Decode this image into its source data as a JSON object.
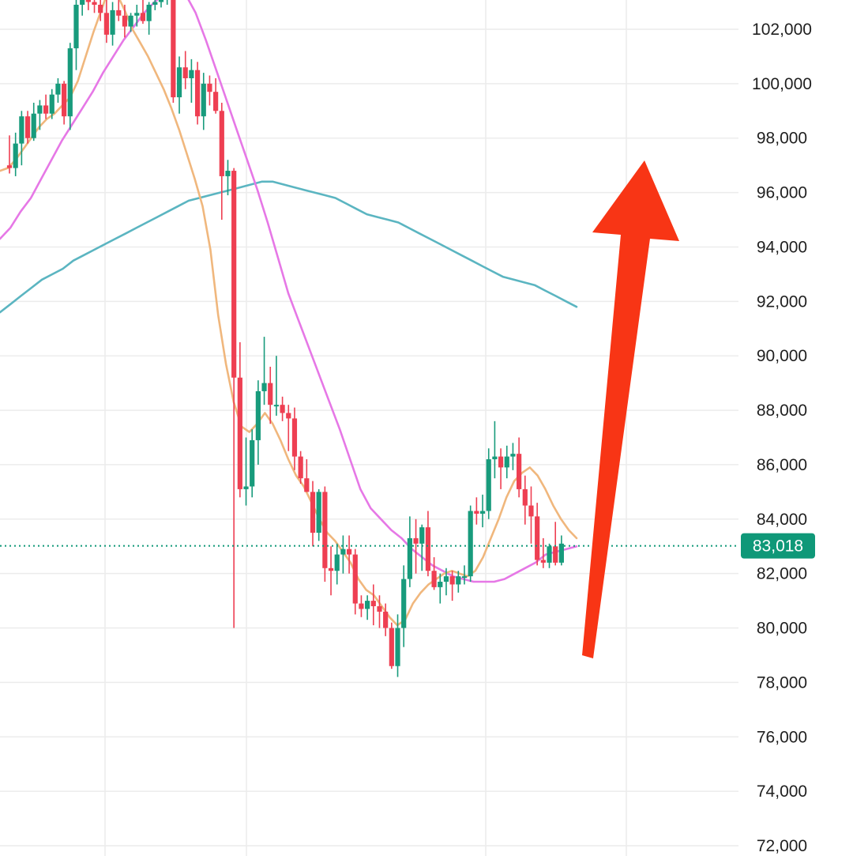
{
  "chart_data": {
    "type": "candlestick",
    "ylim": [
      72000,
      103000
    ],
    "y_ticks": [
      72000,
      74000,
      76000,
      78000,
      80000,
      82000,
      84000,
      86000,
      88000,
      90000,
      92000,
      94000,
      96000,
      98000,
      100000,
      102000
    ],
    "y_tick_labels": [
      "72,000",
      "74,000",
      "76,000",
      "78,000",
      "80,000",
      "82,000",
      "84,000",
      "86,000",
      "88,000",
      "90,000",
      "92,000",
      "94,000",
      "96,000",
      "98,000",
      "100,000",
      "102,000"
    ],
    "grid": true,
    "current_price": 83018,
    "current_price_label": "83,018",
    "colors": {
      "up": "#189b7c",
      "down": "#ee3f52",
      "ma_fast": "#f0b77d",
      "ma_mid": "#e678e6",
      "ma_slow": "#5bb5c1",
      "arrow": "#f83515",
      "price_tag": "#0f9878",
      "grid": "#ececec",
      "axis_text": "#1f1f1f"
    },
    "candles": [
      [
        97000,
        98100,
        96700,
        96900
      ],
      [
        96900,
        98200,
        96600,
        97800
      ],
      [
        97800,
        99000,
        97000,
        98800
      ],
      [
        98800,
        99000,
        97800,
        98000
      ],
      [
        98000,
        99300,
        97900,
        98900
      ],
      [
        98900,
        99400,
        98300,
        99200
      ],
      [
        99200,
        99600,
        98700,
        98900
      ],
      [
        98900,
        99800,
        98700,
        99600
      ],
      [
        99600,
        100200,
        99300,
        100000
      ],
      [
        100000,
        100100,
        98500,
        98800
      ],
      [
        98800,
        101500,
        98300,
        101300
      ],
      [
        101300,
        103200,
        100500,
        102900
      ],
      [
        102900,
        103400,
        102500,
        103100
      ],
      [
        103100,
        103300,
        102700,
        103000
      ],
      [
        103000,
        103400,
        102600,
        102900
      ],
      [
        102900,
        103300,
        102300,
        102600
      ],
      [
        102600,
        103100,
        101500,
        101800
      ],
      [
        101800,
        103000,
        101400,
        102700
      ],
      [
        102700,
        103100,
        102300,
        102500
      ],
      [
        102500,
        102900,
        101700,
        102100
      ],
      [
        102100,
        102600,
        101900,
        102500
      ],
      [
        102500,
        102900,
        102100,
        102600
      ],
      [
        102600,
        103100,
        102200,
        102300
      ],
      [
        102300,
        103000,
        101800,
        102900
      ],
      [
        102900,
        103300,
        102700,
        103000
      ],
      [
        103000,
        103400,
        102800,
        103100
      ],
      [
        103100,
        103300,
        102900,
        103200
      ],
      [
        103200,
        103300,
        99300,
        99500
      ],
      [
        99500,
        101000,
        98900,
        100600
      ],
      [
        100600,
        101200,
        99800,
        100200
      ],
      [
        100200,
        100900,
        99300,
        100500
      ],
      [
        100500,
        100800,
        98500,
        98800
      ],
      [
        98800,
        100400,
        98300,
        100000
      ],
      [
        100000,
        100300,
        99200,
        99700
      ],
      [
        99700,
        100200,
        98900,
        99000
      ],
      [
        99000,
        99300,
        95000,
        96600
      ],
      [
        96600,
        97200,
        95900,
        96800
      ],
      [
        96800,
        96900,
        80000,
        89200
      ],
      [
        89200,
        90500,
        84800,
        85100
      ],
      [
        85100,
        87000,
        84500,
        85200
      ],
      [
        85200,
        87300,
        84800,
        86900
      ],
      [
        86900,
        89100,
        86000,
        88700
      ],
      [
        88700,
        90700,
        88200,
        89000
      ],
      [
        89000,
        89600,
        87500,
        88200
      ],
      [
        88200,
        90000,
        87800,
        88200
      ],
      [
        88200,
        88500,
        87600,
        87900
      ],
      [
        87900,
        88200,
        86500,
        87700
      ],
      [
        87700,
        88100,
        85800,
        86300
      ],
      [
        86300,
        86500,
        85300,
        85500
      ],
      [
        85500,
        86200,
        85000,
        85000
      ],
      [
        85000,
        85400,
        83000,
        83500
      ],
      [
        83500,
        85100,
        83200,
        85000
      ],
      [
        85000,
        85200,
        81700,
        82200
      ],
      [
        82200,
        83000,
        81200,
        82100
      ],
      [
        82100,
        83100,
        81600,
        82700
      ],
      [
        82700,
        83400,
        82000,
        82900
      ],
      [
        82900,
        83400,
        82000,
        82700
      ],
      [
        82700,
        82900,
        80500,
        80900
      ],
      [
        80900,
        81200,
        80400,
        80700
      ],
      [
        80700,
        81200,
        80300,
        81000
      ],
      [
        81000,
        81600,
        80100,
        80800
      ],
      [
        80800,
        81200,
        80000,
        80600
      ],
      [
        80600,
        80900,
        79700,
        80000
      ],
      [
        80000,
        80200,
        78500,
        78600
      ],
      [
        78600,
        80500,
        78200,
        80000
      ],
      [
        80000,
        82300,
        79300,
        81800
      ],
      [
        81800,
        84100,
        81500,
        83300
      ],
      [
        83300,
        84000,
        82000,
        83100
      ],
      [
        83100,
        83800,
        82100,
        83700
      ],
      [
        83700,
        84300,
        81900,
        82100
      ],
      [
        82100,
        82600,
        81400,
        81500
      ],
      [
        81500,
        82000,
        80900,
        81700
      ],
      [
        81700,
        82200,
        81200,
        81900
      ],
      [
        81900,
        82100,
        81000,
        81600
      ],
      [
        81600,
        82100,
        81300,
        81900
      ],
      [
        81900,
        82300,
        81600,
        81900
      ],
      [
        81900,
        84500,
        81700,
        84300
      ],
      [
        84300,
        84800,
        83800,
        84200
      ],
      [
        84200,
        84900,
        83700,
        84300
      ],
      [
        84300,
        86600,
        84000,
        86200
      ],
      [
        86200,
        87600,
        85500,
        86300
      ],
      [
        86300,
        86600,
        85100,
        85900
      ],
      [
        85900,
        86700,
        85500,
        86300
      ],
      [
        86300,
        86800,
        85800,
        86400
      ],
      [
        86400,
        87000,
        84800,
        85100
      ],
      [
        85100,
        85600,
        83800,
        84500
      ],
      [
        84500,
        85200,
        83100,
        84100
      ],
      [
        84100,
        84600,
        82300,
        82500
      ],
      [
        82500,
        83300,
        82200,
        82400
      ],
      [
        82400,
        83100,
        82200,
        83000
      ],
      [
        83000,
        83900,
        82300,
        82400
      ],
      [
        82400,
        83400,
        82300,
        83100
      ]
    ],
    "ma_fast": [
      [
        96800,
        96900,
        97200,
        97600,
        98000,
        98400,
        98700,
        98900,
        99200,
        99500,
        100100,
        101000,
        101900,
        102700,
        103500
      ],
      [
        103300,
        102700,
        102000,
        101500,
        101000,
        100400,
        99800,
        99100,
        98300,
        97400,
        96500,
        95500,
        93900,
        91500,
        89700
      ],
      [
        88300,
        87400,
        87200,
        87500,
        87900,
        87500,
        86900,
        86200,
        85600,
        85200,
        84600,
        84000,
        83500,
        83200,
        82800
      ],
      [
        82400,
        81800,
        81400,
        81200,
        80800,
        80400,
        80100,
        80300,
        80900,
        81300,
        81600,
        81800,
        82000,
        82100,
        82000
      ],
      [
        81900,
        82100,
        82600,
        83300,
        84000,
        84800,
        85400,
        85700,
        85900,
        85600,
        85100,
        84500,
        84000,
        83600,
        83300
      ]
    ],
    "ma_mid": [
      94300,
      94700,
      95300,
      95800,
      96500,
      97200,
      97900,
      98500,
      99100,
      99700,
      100400,
      101000,
      101600,
      102100,
      102600,
      103000,
      103300,
      103400,
      103300,
      102600,
      101600,
      100500,
      99400,
      98300,
      97200,
      96100,
      94900,
      93600,
      92300,
      91300,
      90300,
      89300,
      88300,
      87300,
      86200,
      85100,
      84400,
      84000,
      83600,
      83300,
      82900,
      82600,
      82300,
      82100,
      81900,
      81800,
      81700,
      81700,
      81700,
      81800,
      82000,
      82200,
      82400,
      82700,
      82800,
      82900,
      83000
    ],
    "ma_slow": [
      91600,
      91900,
      92200,
      92500,
      92800,
      93000,
      93200,
      93500,
      93700,
      93900,
      94100,
      94300,
      94500,
      94700,
      94900,
      95100,
      95300,
      95500,
      95700,
      95800,
      95900,
      96000,
      96100,
      96200,
      96300,
      96400,
      96400,
      96300,
      96200,
      96100,
      96000,
      95900,
      95800,
      95600,
      95400,
      95200,
      95100,
      95000,
      94900,
      94700,
      94500,
      94300,
      94100,
      93900,
      93700,
      93500,
      93300,
      93100,
      92900,
      92800,
      92700,
      92600,
      92400,
      92200,
      92000,
      91800
    ],
    "annotations": [
      {
        "kind": "arrow",
        "direction": "up"
      }
    ]
  }
}
